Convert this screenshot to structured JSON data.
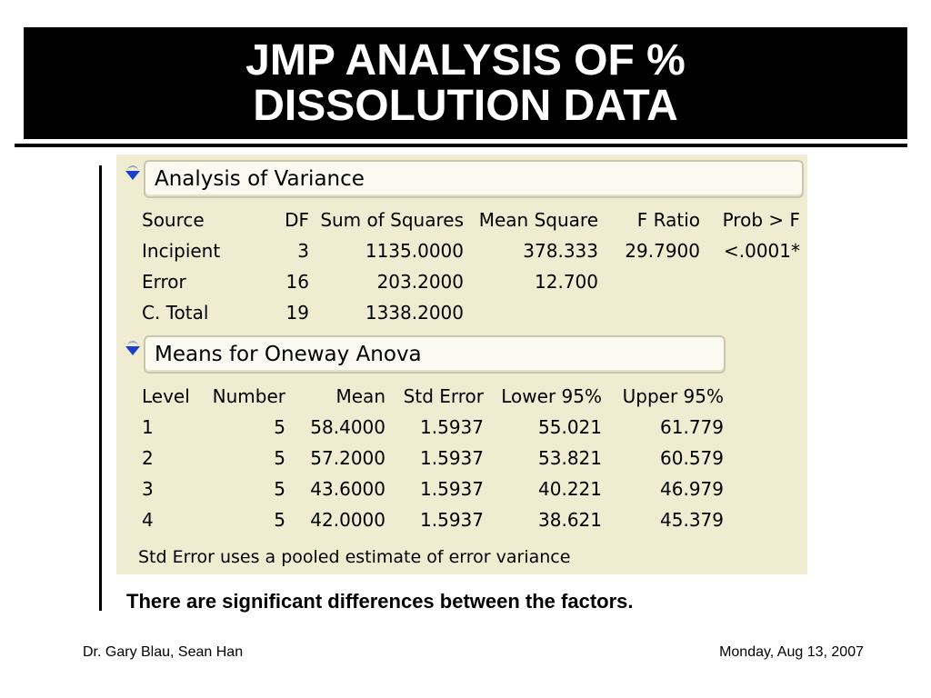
{
  "slide": {
    "title_lines": [
      "JMP ANALYSIS OF %",
      "DISSOLUTION DATA"
    ],
    "conclusion": "There are significant differences between the factors.",
    "footer_left": "Dr. Gary Blau, Sean Han",
    "footer_right": "Monday, Aug 13, 2007"
  },
  "anova": {
    "header": "Analysis of Variance",
    "columns": [
      "Source",
      "DF",
      "Sum of Squares",
      "Mean Square",
      "F Ratio",
      "Prob > F"
    ],
    "rows": [
      [
        "Incipient",
        "3",
        "1135.0000",
        "378.333",
        "29.7900",
        "<.0001*"
      ],
      [
        "Error",
        "16",
        "203.2000",
        "12.700",
        "",
        ""
      ],
      [
        "C. Total",
        "19",
        "1338.2000",
        "",
        "",
        ""
      ]
    ]
  },
  "means": {
    "header": "Means for Oneway Anova",
    "columns": [
      "Level",
      "Number",
      "Mean",
      "Std Error",
      "Lower 95%",
      "Upper 95%"
    ],
    "rows": [
      [
        "1",
        "5",
        "58.4000",
        "1.5937",
        "55.021",
        "61.779"
      ],
      [
        "2",
        "5",
        "57.2000",
        "1.5937",
        "53.821",
        "60.579"
      ],
      [
        "3",
        "5",
        "43.6000",
        "1.5937",
        "40.221",
        "46.979"
      ],
      [
        "4",
        "5",
        "42.0000",
        "1.5937",
        "38.621",
        "45.379"
      ]
    ],
    "footnote": "Std Error uses a pooled estimate of error variance"
  },
  "icons": {
    "disclosure": "disclosure-triangle-icon"
  }
}
